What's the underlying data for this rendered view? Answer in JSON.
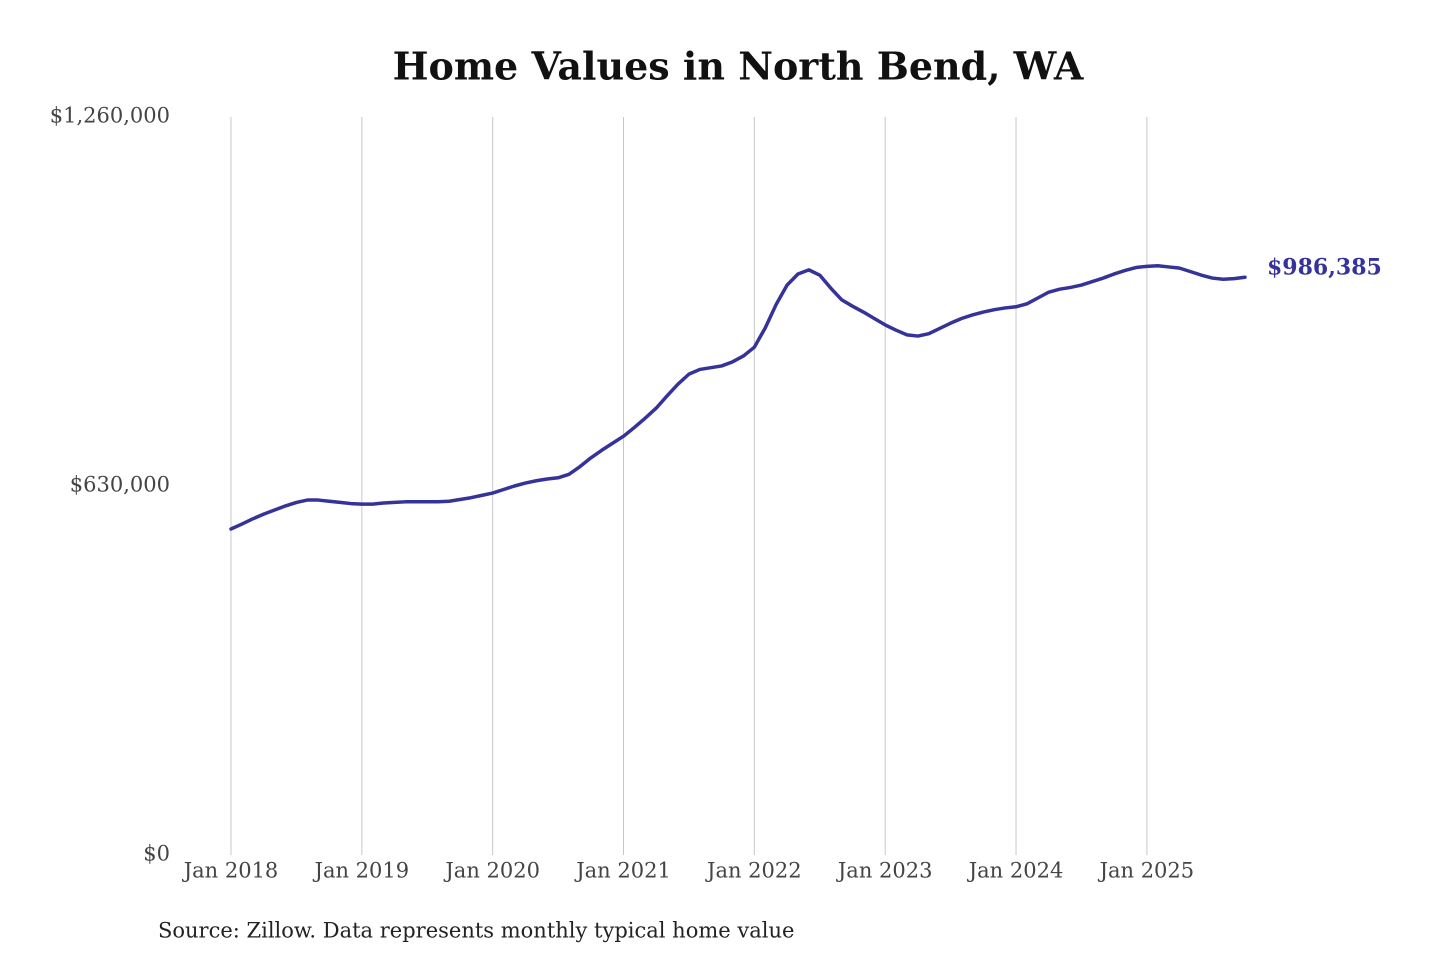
{
  "chart_data": {
    "type": "line",
    "title": "Home Values in North Bend, WA",
    "source": "Source: Zillow. Data represents monthly typical home value",
    "x": [
      "2018-01",
      "2018-02",
      "2018-03",
      "2018-04",
      "2018-05",
      "2018-06",
      "2018-07",
      "2018-08",
      "2018-09",
      "2018-10",
      "2018-11",
      "2018-12",
      "2019-01",
      "2019-02",
      "2019-03",
      "2019-04",
      "2019-05",
      "2019-06",
      "2019-07",
      "2019-08",
      "2019-09",
      "2019-10",
      "2019-11",
      "2019-12",
      "2020-01",
      "2020-02",
      "2020-03",
      "2020-04",
      "2020-05",
      "2020-06",
      "2020-07",
      "2020-08",
      "2020-09",
      "2020-10",
      "2020-11",
      "2020-12",
      "2021-01",
      "2021-02",
      "2021-03",
      "2021-04",
      "2021-05",
      "2021-06",
      "2021-07",
      "2021-08",
      "2021-09",
      "2021-10",
      "2021-11",
      "2021-12",
      "2022-01",
      "2022-02",
      "2022-03",
      "2022-04",
      "2022-05",
      "2022-06",
      "2022-07",
      "2022-08",
      "2022-09",
      "2022-10",
      "2022-11",
      "2022-12",
      "2023-01",
      "2023-02",
      "2023-03",
      "2023-04",
      "2023-05",
      "2023-06",
      "2023-07",
      "2023-08",
      "2023-09",
      "2023-10",
      "2023-11",
      "2023-12",
      "2024-01",
      "2024-02",
      "2024-03",
      "2024-04",
      "2024-05",
      "2024-06",
      "2024-07",
      "2024-08",
      "2024-09",
      "2024-10",
      "2024-11",
      "2024-12",
      "2025-01",
      "2025-02",
      "2025-03",
      "2025-04",
      "2025-05",
      "2025-06",
      "2025-07",
      "2025-08",
      "2025-09",
      "2025-10"
    ],
    "series": [
      {
        "name": "Home value",
        "color": "#35339a",
        "values": [
          556600,
          565000,
          574000,
          582000,
          589000,
          596000,
          602000,
          606000,
          606000,
          604000,
          602000,
          600000,
          599000,
          599000,
          601000,
          602000,
          603000,
          603000,
          603000,
          603000,
          604000,
          607000,
          610000,
          614000,
          618000,
          624000,
          630000,
          635000,
          639000,
          642000,
          644000,
          650000,
          663000,
          678000,
          691000,
          703000,
          715000,
          730000,
          746000,
          763000,
          784000,
          804000,
          821000,
          829000,
          832000,
          835000,
          842000,
          852000,
          867000,
          900000,
          940000,
          973000,
          992000,
          999000,
          990000,
          968000,
          948000,
          937000,
          927000,
          916000,
          905000,
          896000,
          888000,
          886000,
          890000,
          899000,
          908000,
          916000,
          922000,
          927000,
          931000,
          934000,
          936000,
          941000,
          951000,
          961000,
          966000,
          969000,
          973000,
          979000,
          985000,
          992000,
          998000,
          1003000,
          1005000,
          1006000,
          1004000,
          1002000,
          996000,
          990000,
          985000,
          983000,
          984000,
          986385
        ],
        "value_labels": [
          null,
          null,
          null,
          null,
          null,
          null,
          null,
          null,
          null,
          null,
          null,
          null,
          null,
          null,
          null,
          null,
          null,
          null,
          null,
          null,
          null,
          null,
          null,
          null,
          null,
          null,
          null,
          null,
          null,
          null,
          null,
          null,
          null,
          null,
          null,
          null,
          null,
          null,
          null,
          null,
          null,
          null,
          null,
          null,
          null,
          null,
          null,
          null,
          null,
          null,
          null,
          null,
          null,
          null,
          null,
          null,
          null,
          null,
          null,
          null,
          null,
          null,
          null,
          null,
          null,
          null,
          null,
          null,
          null,
          null,
          null,
          null,
          null,
          null,
          null,
          null,
          null,
          null,
          null,
          null,
          null,
          null,
          null,
          null,
          null,
          null,
          null,
          null,
          null,
          null,
          null,
          null,
          null,
          "$986,385"
        ]
      }
    ],
    "xlim": [
      "2018-01",
      "2025-10"
    ],
    "xticks": [
      {
        "value": "2018-01",
        "label": "Jan 2018"
      },
      {
        "value": "2019-01",
        "label": "Jan 2019"
      },
      {
        "value": "2020-01",
        "label": "Jan 2020"
      },
      {
        "value": "2021-01",
        "label": "Jan 2021"
      },
      {
        "value": "2022-01",
        "label": "Jan 2022"
      },
      {
        "value": "2023-01",
        "label": "Jan 2023"
      },
      {
        "value": "2024-01",
        "label": "Jan 2024"
      },
      {
        "value": "2025-01",
        "label": "Jan 2025"
      }
    ],
    "ylim": [
      0,
      1260000
    ],
    "yticks": [
      {
        "value": 0,
        "label": "$0"
      },
      {
        "value": 630000,
        "label": "$630,000"
      },
      {
        "value": 1260000,
        "label": "$1,260,000"
      }
    ],
    "grid": "x"
  }
}
